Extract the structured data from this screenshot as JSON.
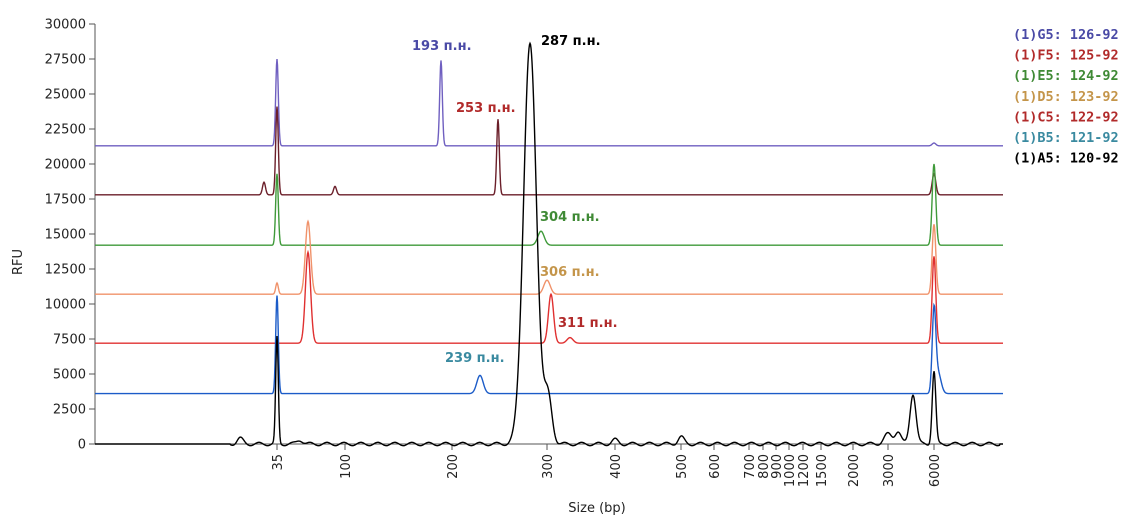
{
  "chart_data": {
    "type": "line",
    "xlabel": "Size (bp)",
    "ylabel": "RFU",
    "ylim": [
      0,
      30000
    ],
    "y_ticks": [
      "0",
      "2500",
      "5000",
      "7500",
      "10000",
      "12500",
      "15000",
      "17500",
      "20000",
      "22500",
      "25000",
      "27500",
      "30000"
    ],
    "x_ticks": [
      "35",
      "100",
      "200",
      "300",
      "400",
      "500",
      "600",
      "700",
      "800",
      "900",
      "1000",
      "1200",
      "1500",
      "2000",
      "3000",
      "6000"
    ],
    "legend_position": "right",
    "series": [
      {
        "name": "(1)G5: 126-92",
        "color": "#6f5fc0",
        "baseline_rfu": 21300,
        "peaks": [
          {
            "x_bp": "35",
            "rfu": 6200
          },
          {
            "x_bp": "193",
            "rfu": 6100
          },
          {
            "x_bp": "6000",
            "rfu": 200
          }
        ]
      },
      {
        "name": "(1)F5: 125-92",
        "color": "#6b1f2a",
        "baseline_rfu": 17800,
        "peaks": [
          {
            "x_bp": "35",
            "rfu": 6300
          },
          {
            "x_bp": "253",
            "rfu": 5400
          },
          {
            "x_bp": "6000",
            "rfu": 1500
          }
        ]
      },
      {
        "name": "(1)E5: 124-92",
        "color": "#3f9a3a",
        "baseline_rfu": 14200,
        "peaks": [
          {
            "x_bp": "35",
            "rfu": 5100
          },
          {
            "x_bp": "304",
            "rfu": 1000
          },
          {
            "x_bp": "6000",
            "rfu": 5800
          }
        ]
      },
      {
        "name": "(1)D5: 123-92",
        "color": "#f0926a",
        "baseline_rfu": 10700,
        "peaks": [
          {
            "x_bp": "35",
            "rfu": 800
          },
          {
            "x_bp": "50",
            "rfu": 5200
          },
          {
            "x_bp": "306",
            "rfu": 1000
          },
          {
            "x_bp": "6000",
            "rfu": 5000
          }
        ]
      },
      {
        "name": "(1)C5: 122-92",
        "color": "#e03030",
        "baseline_rfu": 7200,
        "peaks": [
          {
            "x_bp": "50",
            "rfu": 6500
          },
          {
            "x_bp": "311",
            "rfu": 3500
          },
          {
            "x_bp": "6000",
            "rfu": 6200
          }
        ]
      },
      {
        "name": "(1)B5: 121-92",
        "color": "#1c5cc8",
        "baseline_rfu": 3600,
        "peaks": [
          {
            "x_bp": "35",
            "rfu": 7000
          },
          {
            "x_bp": "239",
            "rfu": 1300
          },
          {
            "x_bp": "6000",
            "rfu": 5700
          }
        ]
      },
      {
        "name": "(1)A5: 120-92",
        "color": "#000000",
        "baseline_rfu": 0,
        "peaks": [
          {
            "x_bp": "35",
            "rfu": 7600
          },
          {
            "x_bp": "287",
            "rfu": 28500
          },
          {
            "x_bp": "6000",
            "rfu": 5200
          }
        ]
      }
    ],
    "peak_labels": [
      {
        "text": "193 п.н.",
        "color": "#4a4aa6",
        "series": "(1)G5: 126-92"
      },
      {
        "text": "253 п.н.",
        "color": "#b12a2a",
        "series": "(1)F5: 125-92"
      },
      {
        "text": "287 п.н.",
        "color": "#000000",
        "series": "(1)A5: 120-92"
      },
      {
        "text": "304 п.н.",
        "color": "#3f8a35",
        "series": "(1)E5: 124-92"
      },
      {
        "text": "306 п.н.",
        "color": "#c4954a",
        "series": "(1)D5: 123-92"
      },
      {
        "text": "311 п.н.",
        "color": "#b12a2a",
        "series": "(1)C5: 122-92"
      },
      {
        "text": "239 п.н.",
        "color": "#3a8aa0",
        "series": "(1)B5: 121-92"
      }
    ],
    "legend_colors": [
      "#4a4aa6",
      "#b12a2a",
      "#3f8a35",
      "#c4954a",
      "#b12a2a",
      "#3a8aa0",
      "#000000"
    ]
  }
}
